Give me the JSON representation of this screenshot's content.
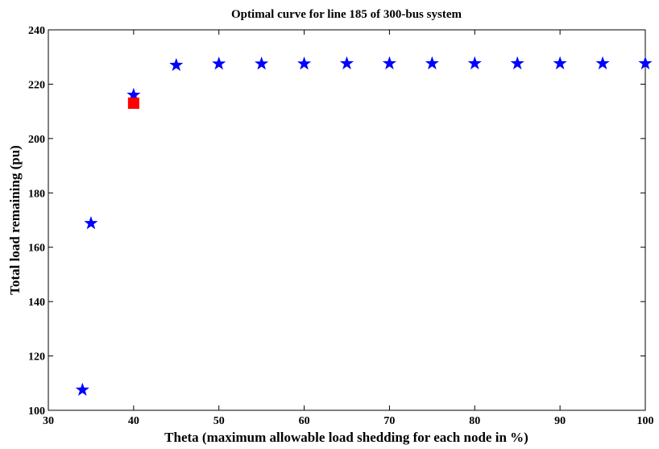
{
  "chart_data": {
    "type": "scatter",
    "title": "Optimal curve for line 185 of 300-bus system",
    "xlabel": "Theta (maximum allowable load shedding for each node in %)",
    "ylabel": "Total load remaining (pu)",
    "xlim": [
      30,
      100
    ],
    "ylim": [
      100,
      240
    ],
    "xticks": [
      "30",
      "40",
      "50",
      "60",
      "70",
      "80",
      "90",
      "100"
    ],
    "yticks": [
      "100",
      "120",
      "140",
      "160",
      "180",
      "200",
      "220",
      "240"
    ],
    "grid": false,
    "series": [
      {
        "marker": "star",
        "color": "#0000ff",
        "x": [
          34,
          35,
          40,
          45,
          50,
          55,
          60,
          65,
          70,
          75,
          80,
          85,
          90,
          95,
          100
        ],
        "y": [
          107.5,
          168.8,
          216.0,
          227.0,
          227.5,
          227.5,
          227.5,
          227.6,
          227.6,
          227.6,
          227.6,
          227.6,
          227.6,
          227.6,
          227.6
        ]
      },
      {
        "marker": "square",
        "color": "#ff0000",
        "x": [
          40
        ],
        "y": [
          213.0
        ]
      }
    ]
  }
}
